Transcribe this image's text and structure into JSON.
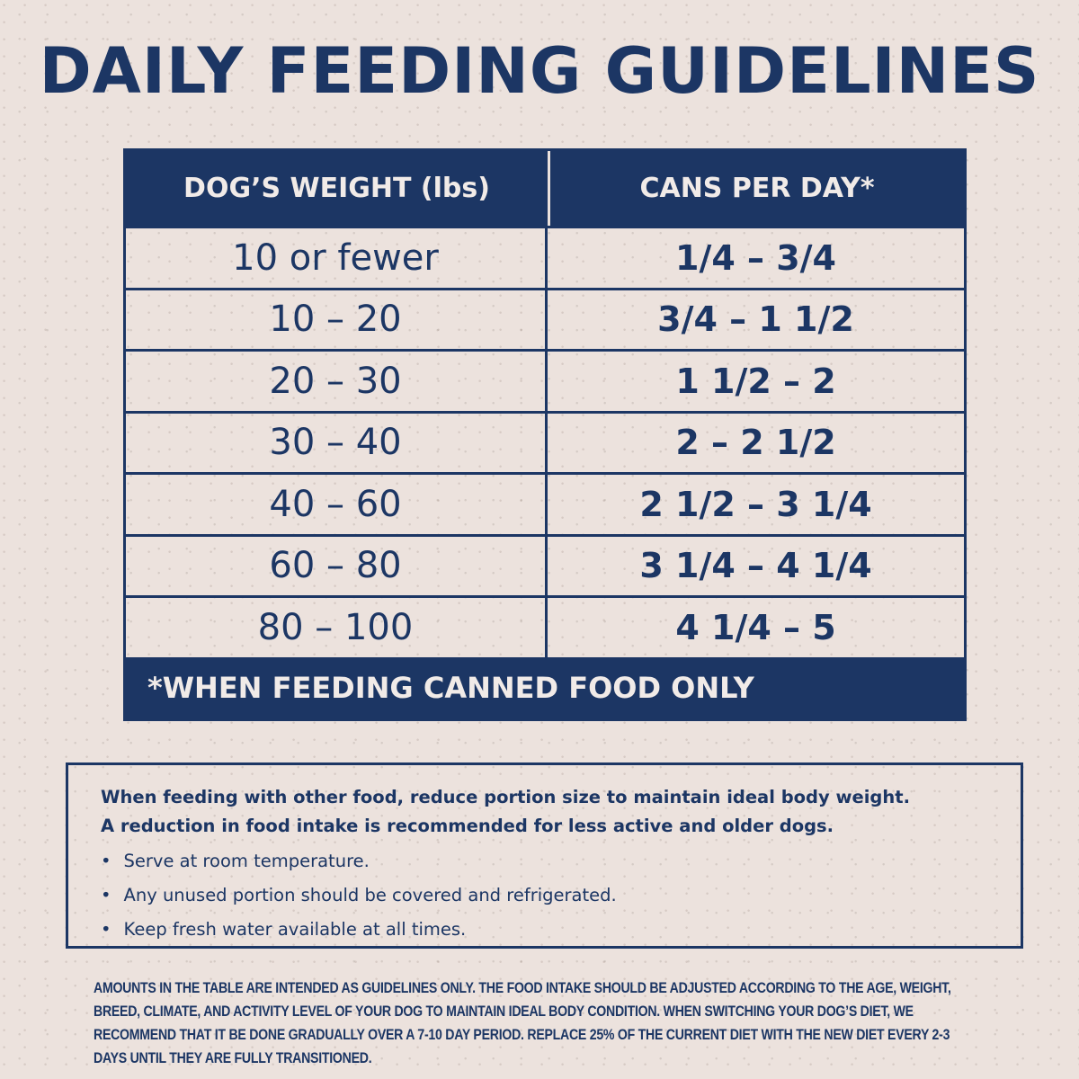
{
  "title": "DAILY FEEDING GUIDELINES",
  "table": {
    "headers": [
      "DOG’S WEIGHT (lbs)",
      "CANS PER DAY*"
    ],
    "rows": [
      [
        "10 or fewer",
        "1/4 – 3/4"
      ],
      [
        "10 – 20",
        "3/4 – 1 1/2"
      ],
      [
        "20 – 30",
        "1 1/2 – 2"
      ],
      [
        "30 – 40",
        "2 – 2 1/2"
      ],
      [
        "40 – 60",
        "2 1/2 – 3 1/4"
      ],
      [
        "60 – 80",
        "3 1/4 – 4 1/4"
      ],
      [
        "80 – 100",
        "4 1/4 – 5"
      ]
    ],
    "footnote": "*WHEN FEEDING CANNED FOOD ONLY"
  },
  "notes": {
    "lead": [
      "When feeding with other food, reduce portion size to maintain ideal body weight.",
      "A reduction in food intake is recommended for less active and older dogs."
    ],
    "bullets": [
      "Serve at room temperature.",
      "Any unused portion should be covered and refrigerated.",
      "Keep fresh water available at all times."
    ]
  },
  "fine_print": "AMOUNTS IN THE TABLE ARE INTENDED AS GUIDELINES ONLY. THE FOOD INTAKE SHOULD BE ADJUSTED ACCORDING TO THE AGE, WEIGHT, BREED, CLIMATE, AND ACTIVITY LEVEL OF YOUR DOG TO MAINTAIN IDEAL BODY CONDITION. WHEN SWITCHING YOUR DOG’S DIET, WE RECOMMEND THAT IT BE DONE GRADUALLY OVER A 7-10 DAY PERIOD. REPLACE 25% OF THE CURRENT DIET WITH THE NEW DIET EVERY 2-3 DAYS UNTIL THEY ARE FULLY TRANSITIONED.",
  "colors": {
    "navy": "#1c3664",
    "background": "#ece2dd"
  }
}
